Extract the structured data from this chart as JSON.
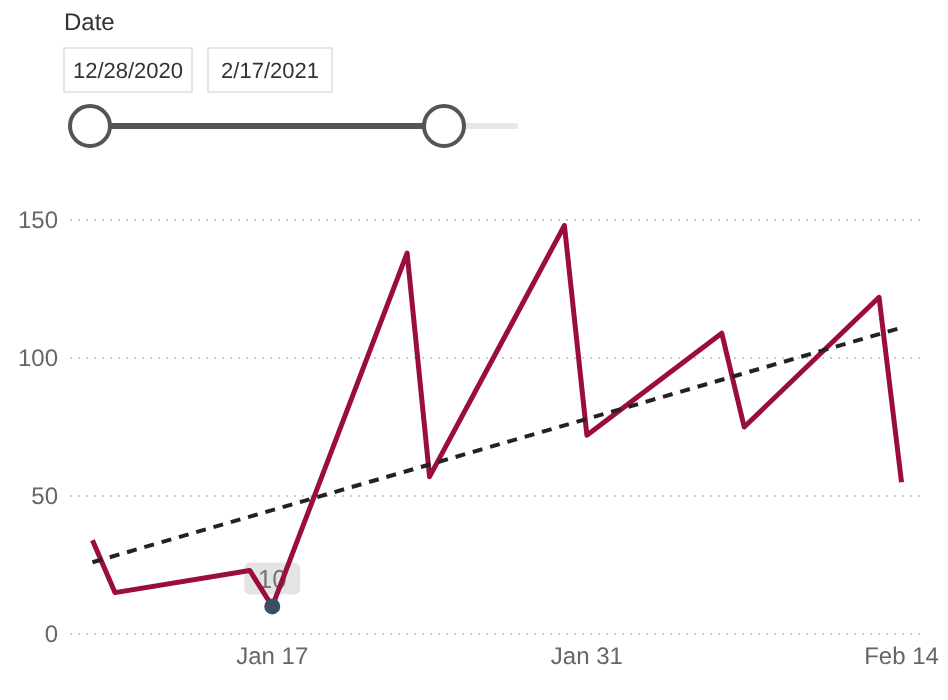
{
  "chart_data": {
    "type": "line",
    "annotations": [
      "Date",
      "12/28/2020",
      "2/17/2021"
    ],
    "x": [
      "2021-01-09",
      "2021-01-10",
      "2021-01-16",
      "2021-01-17",
      "2021-01-23",
      "2021-01-24",
      "2021-01-30",
      "2021-01-31",
      "2021-02-06",
      "2021-02-07",
      "2021-02-13",
      "2021-02-14"
    ],
    "series": [
      {
        "color": "#9b0d3f",
        "values": [
          34,
          15,
          23,
          10,
          138,
          57,
          148,
          72,
          109,
          75,
          122,
          55
        ]
      },
      {
        "type": "line",
        "line_style": "dashed",
        "color": "#222222",
        "x": [
          "2021-01-09",
          "2021-02-14"
        ],
        "values": [
          26,
          111
        ]
      },
      {
        "type": "scatter",
        "marker": "circle",
        "color": "#3b4e63",
        "x": [
          "2021-01-17"
        ],
        "values": [
          10
        ],
        "value_labels": [
          "10"
        ]
      }
    ],
    "xlim": [
      "2021-01-08",
      "2021-02-15"
    ],
    "xticks": [
      {
        "value": "2021-01-17",
        "label": "Jan 17"
      },
      {
        "value": "2021-01-31",
        "label": "Jan 31"
      },
      {
        "value": "2021-02-14",
        "label": "Feb 14"
      }
    ],
    "ylim": [
      0,
      150
    ],
    "yticks": [
      0,
      50,
      100,
      150
    ],
    "grid": "y",
    "marker": "none",
    "line_style": "solid"
  }
}
